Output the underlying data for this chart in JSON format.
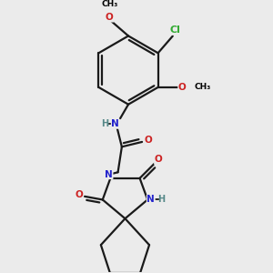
{
  "bg_color": "#ebebeb",
  "atom_colors": {
    "C": "#000000",
    "N": "#2222cc",
    "O": "#cc2222",
    "Cl": "#33aa33",
    "H": "#558888"
  },
  "bond_color": "#1a1a1a",
  "bond_width": 1.6,
  "font_size_atom": 8.5,
  "font_size_small": 7.5
}
